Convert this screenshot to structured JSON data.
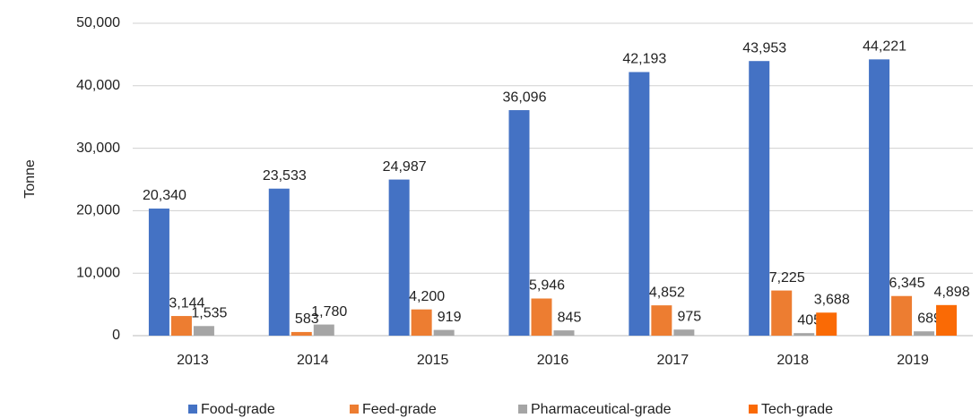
{
  "chart_data": {
    "type": "bar",
    "y_label": "Tonne",
    "categories": [
      "2013",
      "2014",
      "2015",
      "2016",
      "2017",
      "2018",
      "2019"
    ],
    "series": [
      {
        "name": "Food-grade",
        "color": "#4472c4",
        "values": [
          20340,
          23533,
          24987,
          36096,
          42193,
          43953,
          44221
        ],
        "value_labels": [
          "20,340",
          "23,533",
          "24,987",
          "36,096",
          "42,193",
          "43,953",
          "44,221"
        ]
      },
      {
        "name": "Feed-grade",
        "color": "#ed7d31",
        "values": [
          3144,
          583,
          4200,
          5946,
          4852,
          7225,
          6345
        ],
        "value_labels": [
          "3,144",
          "583",
          "4,200",
          "5,946",
          "4,852",
          "7,225",
          "6,345"
        ]
      },
      {
        "name": "Pharmaceutical-grade",
        "color": "#a5a5a5",
        "values": [
          1535,
          1780,
          919,
          845,
          975,
          405,
          689
        ],
        "value_labels": [
          "1,535",
          "1,780",
          "919",
          "845",
          "975",
          "405",
          "689"
        ]
      },
      {
        "name": "Tech-grade",
        "color": "#fa6a05",
        "values": [
          null,
          null,
          null,
          null,
          null,
          3688,
          4898
        ],
        "value_labels": [
          null,
          null,
          null,
          null,
          null,
          "3,688",
          "4,898"
        ]
      }
    ],
    "ylim": [
      0,
      50000
    ],
    "yticks": [
      0,
      {
        "value": 10000,
        "label": "10,000"
      },
      {
        "value": 20000,
        "label": "20,000"
      },
      {
        "value": 30000,
        "label": "30,000"
      },
      {
        "value": 40000,
        "label": "40,000"
      },
      {
        "value": 50000,
        "label": "50,000"
      }
    ],
    "grid": true,
    "legend": "bottom"
  }
}
